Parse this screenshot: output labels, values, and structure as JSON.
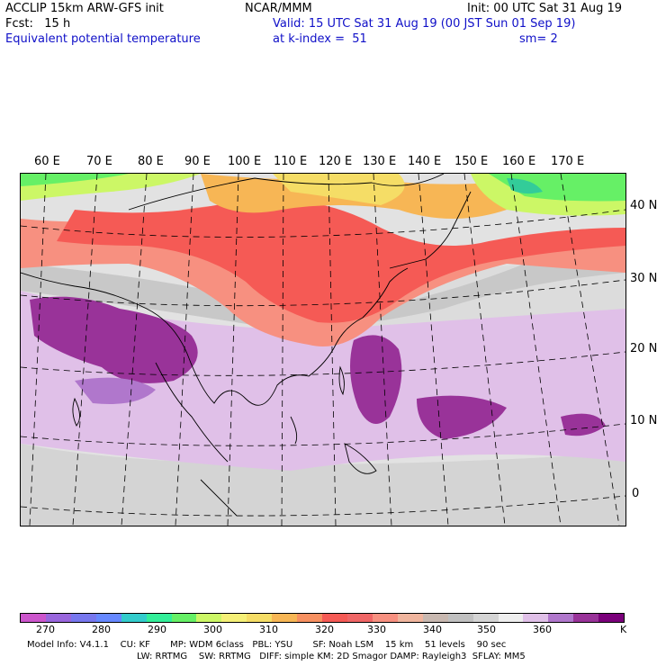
{
  "header": {
    "model_line": "ACCLIP 15km ARW-GFS init",
    "org": "NCAR/MMM",
    "init": "Init: 00 UTC Sat 31 Aug 19",
    "fcst": "Fcst:   15 h",
    "valid": "Valid: 15 UTC Sat 31 Aug 19 (00 JST Sun 01 Sep 19)",
    "field": "Equivalent potential temperature",
    "level": "at k-index =  51",
    "smooth": "sm= 2"
  },
  "map": {
    "lon_labels": [
      "60 E",
      "70 E",
      "80 E",
      "90 E",
      "100 E",
      "110 E",
      "120 E",
      "130 E",
      "140 E",
      "150 E",
      "160 E",
      "170 E"
    ],
    "lat_labels": [
      "40 N",
      "30 N",
      "20 N",
      "10 N",
      "0"
    ]
  },
  "colorbar": {
    "colors": [
      "#cc55cc",
      "#9966dd",
      "#7777ee",
      "#6688ff",
      "#33cccc",
      "#33ee99",
      "#66f066",
      "#ccf766",
      "#f5f077",
      "#f5dd66",
      "#f7b655",
      "#f79060",
      "#f55a55",
      "#f06666",
      "#f79080",
      "#f0b59e",
      "#c8b8b0",
      "#c0c0c0",
      "#d4d4d4",
      "#eeeeee",
      "#e0c0e8",
      "#b077cc",
      "#993399",
      "#7a007a"
    ],
    "labels": [
      "270",
      "280",
      "290",
      "300",
      "310",
      "320",
      "330",
      "340",
      "350",
      "360",
      "K"
    ]
  },
  "footer": {
    "line1": "Model Info: V4.1.1    CU: KF       MP: WDM 6class   PBL: YSU       SF: Noah LSM    15 km    51 levels    90 sec",
    "line2": "LW: RRTMG    SW: RRTMG   DIFF: simple KM: 2D Smagor DAMP: Rayleigh3  SFLAY: MM5"
  }
}
